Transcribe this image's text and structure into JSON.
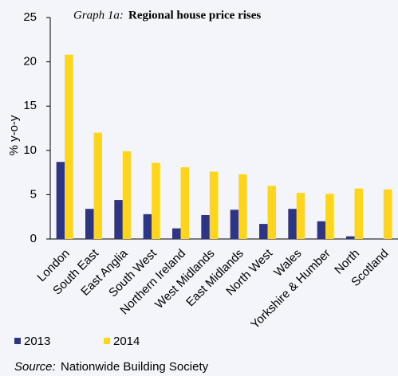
{
  "chart_data": {
    "type": "bar",
    "title_label": "Graph 1a:",
    "title": "Regional house price rises",
    "y_label": "% y-o-y",
    "categories": [
      "London",
      "South East",
      "East Anglia",
      "South West",
      "Northern Ireland",
      "West Midlands",
      "East Midlands",
      "North West",
      "Wales",
      "Yorkshire & Humber",
      "North",
      "Scotland"
    ],
    "series": [
      {
        "name": "2013",
        "color": "#2e3585",
        "values": [
          8.7,
          3.4,
          4.4,
          2.8,
          1.2,
          2.7,
          3.3,
          1.7,
          3.4,
          2.0,
          0.3,
          null
        ]
      },
      {
        "name": "2014",
        "color": "#ffd51c",
        "values": [
          20.8,
          12.0,
          9.9,
          8.6,
          8.1,
          7.6,
          7.3,
          6.0,
          5.2,
          5.1,
          5.7,
          5.6
        ]
      }
    ],
    "ylim": [
      0,
      25
    ],
    "yticks": [
      0,
      5,
      10,
      15,
      20,
      25
    ],
    "grid": false,
    "source_label": "Source:",
    "source": "Nationwide Building Society"
  }
}
